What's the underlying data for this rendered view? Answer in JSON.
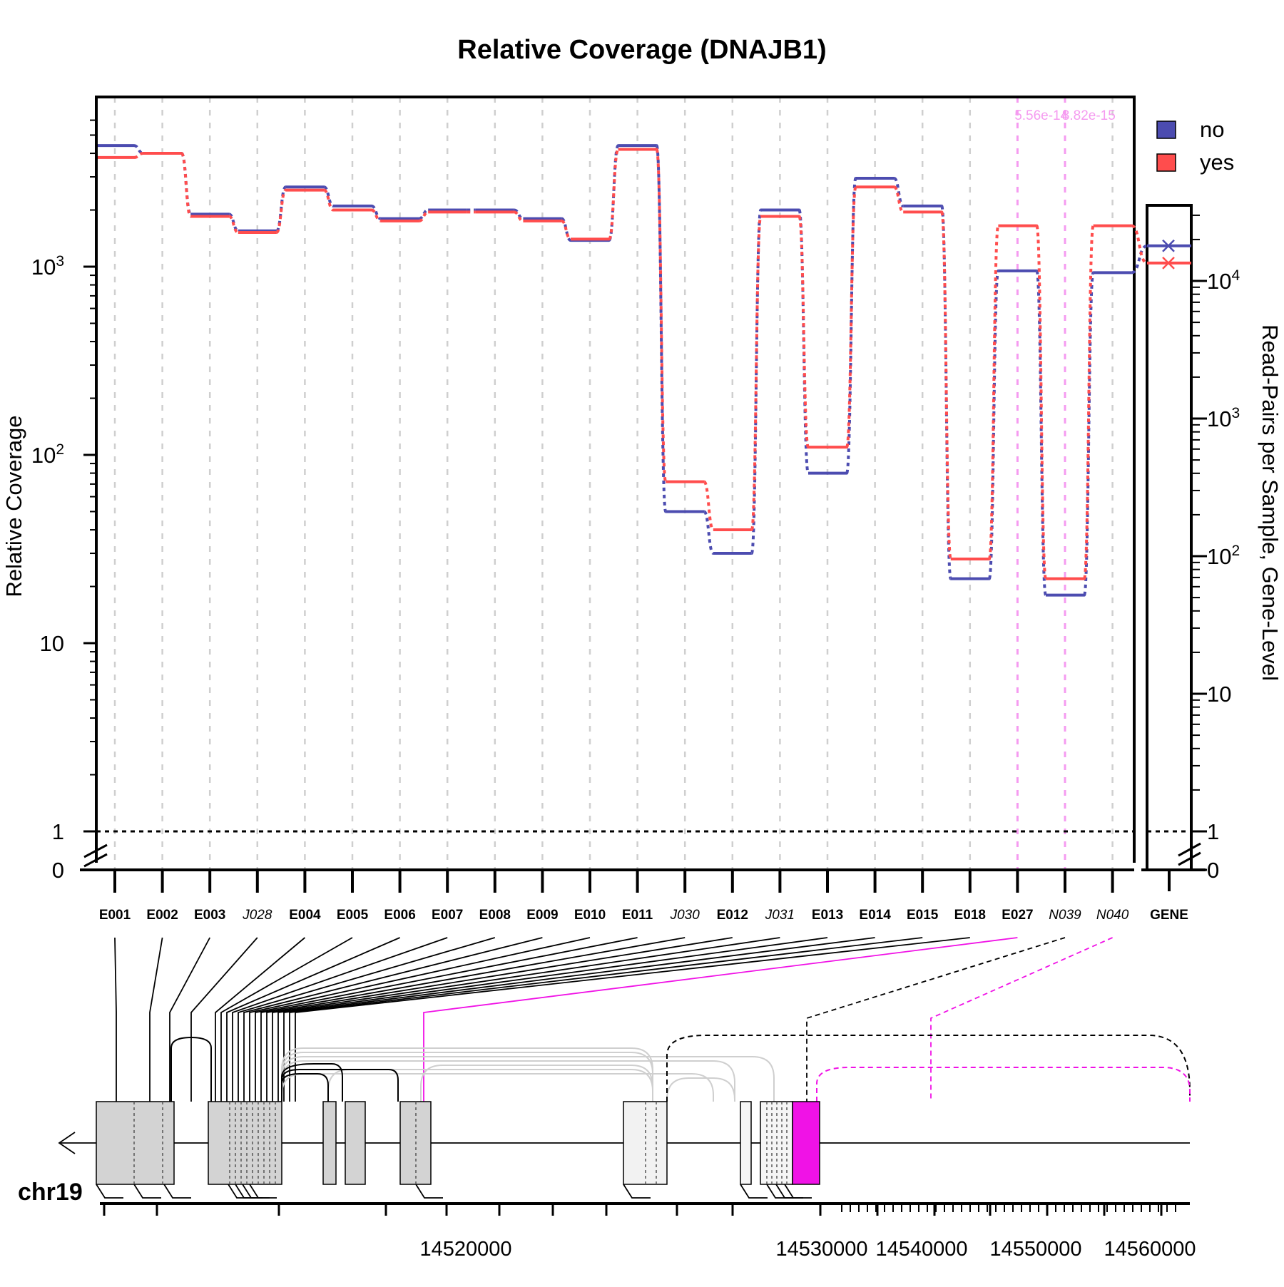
{
  "chart_data": {
    "type": "line",
    "title": "Relative Coverage (DNAJB1)",
    "ylabel": "Relative Coverage",
    "ylabel_right": "Read-Pairs per Sample, Gene-Level",
    "yscale": "log",
    "ylim": [
      1,
      6000
    ],
    "y_ticks": [
      "0",
      "1",
      "10",
      "10^2",
      "10^3"
    ],
    "y_ticks_right": [
      "0",
      "1",
      "10",
      "10^2",
      "10^3",
      "10^4"
    ],
    "categories": [
      "E001",
      "E002",
      "E003",
      "J028",
      "E004",
      "E005",
      "E006",
      "E007",
      "E008",
      "E009",
      "E010",
      "E011",
      "J030",
      "E012",
      "J031",
      "E013",
      "E014",
      "E015",
      "E018",
      "E027",
      "N039",
      "N040"
    ],
    "italic_categories": [
      "J028",
      "J030",
      "J031",
      "N039",
      "N040"
    ],
    "gene_label": "GENE",
    "series": [
      {
        "name": "no",
        "color": "#4C4CB0",
        "values": [
          4400,
          4000,
          1900,
          1550,
          2650,
          2100,
          1800,
          2000,
          2000,
          1800,
          1380,
          4400,
          50,
          30,
          2000,
          80,
          2950,
          2100,
          22,
          950,
          18,
          930
        ],
        "gene_value": 18000
      },
      {
        "name": "yes",
        "color": "#FF4D4D",
        "values": [
          3800,
          4000,
          1850,
          1520,
          2550,
          2000,
          1750,
          1950,
          1950,
          1750,
          1400,
          4200,
          72,
          40,
          1850,
          110,
          2650,
          1950,
          28,
          1650,
          22,
          1650
        ],
        "gene_value": 13500
      }
    ],
    "significant": [
      {
        "category": "E027",
        "pvalue": "5.56e-14"
      },
      {
        "category": "N039",
        "pvalue": "8.82e-15"
      }
    ],
    "legend": {
      "position": "top-right",
      "entries": [
        "no",
        "yes"
      ]
    },
    "reference_line": 1,
    "genomic_axis": {
      "chromosome": "chr19",
      "tick_labels": [
        "14520000",
        "14530000",
        "14540000",
        "14550000",
        "14560000"
      ]
    }
  }
}
